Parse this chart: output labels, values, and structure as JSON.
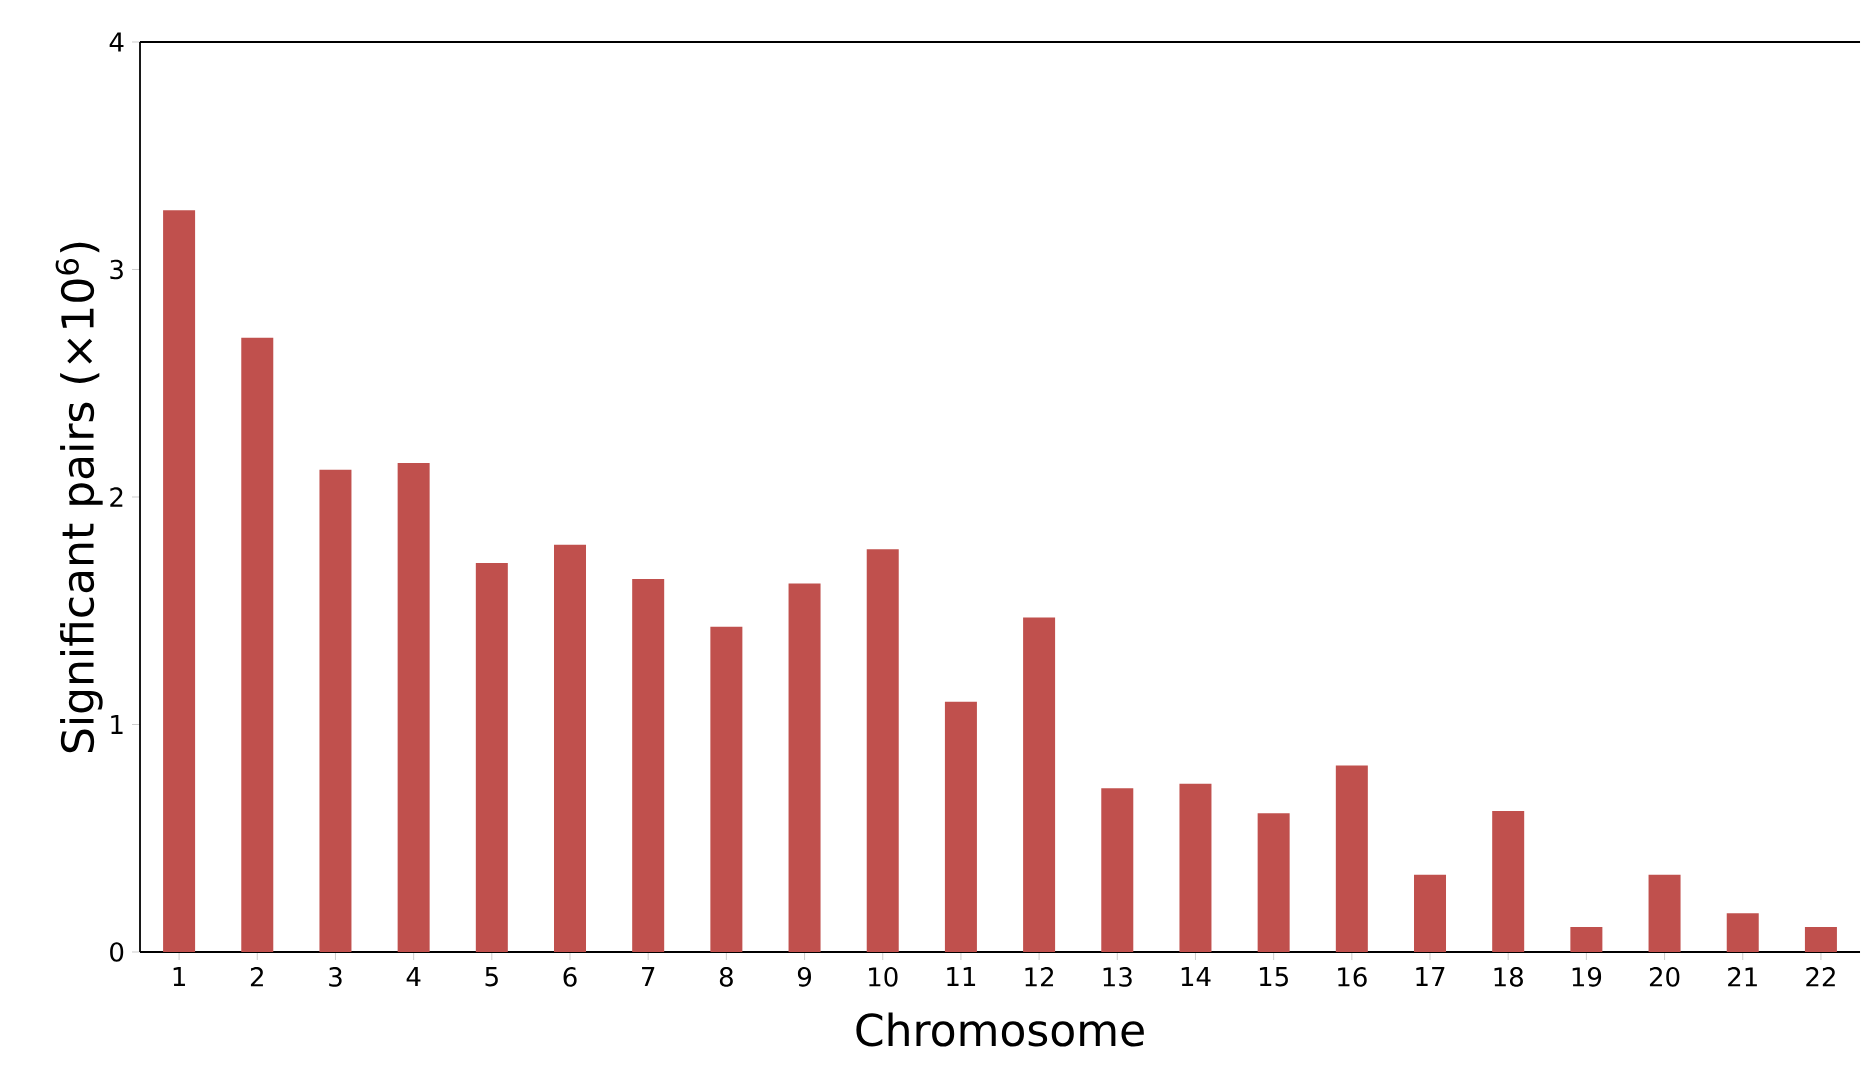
{
  "chart_data": {
    "type": "bar",
    "xlabel": "Chromosome",
    "ylabel": "Significant pairs (×10$^{6}$)",
    "categories": [
      "1",
      "2",
      "3",
      "4",
      "5",
      "6",
      "7",
      "8",
      "9",
      "10",
      "11",
      "12",
      "13",
      "14",
      "15",
      "16",
      "17",
      "18",
      "19",
      "20",
      "21",
      "22"
    ],
    "values": [
      3.26,
      2.7,
      2.12,
      2.15,
      1.71,
      1.79,
      1.64,
      1.43,
      1.62,
      1.77,
      1.1,
      1.47,
      0.72,
      0.74,
      0.61,
      0.82,
      0.34,
      0.62,
      0.11,
      0.34,
      0.17,
      0.11
    ],
    "color": "#c0504d",
    "ylim": [
      0,
      4
    ],
    "yticks": [
      0,
      1,
      2,
      3,
      4
    ],
    "grid": false
  }
}
